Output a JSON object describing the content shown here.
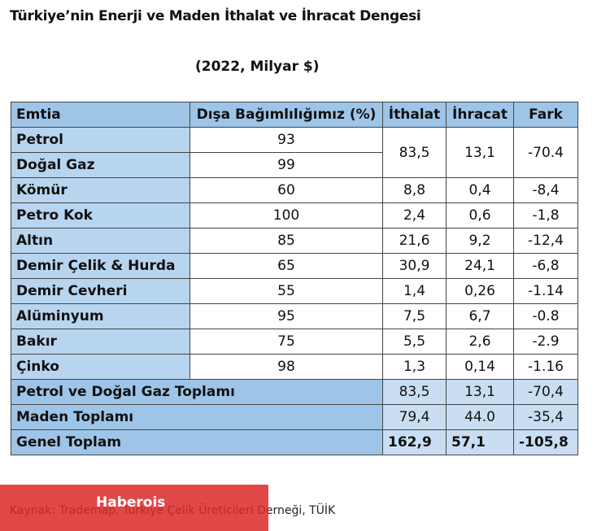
{
  "title": "Türkiye’nin Enerji ve Maden İthalat ve İhracat Dengesi",
  "subtitle": "(2022, Milyar $)",
  "table": {
    "header": [
      "Emtia",
      "Dışa Bağımlılığımız (%)",
      "İthalat",
      "İhracat",
      "Fark"
    ],
    "rows": [
      [
        "Petrol",
        "93",
        "83,5",
        "13,1",
        "-70.4"
      ],
      [
        "Doğal Gaz",
        "99"
      ],
      [
        "Kömür",
        "60",
        "8,8",
        "0,4",
        "-8,4"
      ],
      [
        "Petro Kok",
        "100",
        "2,4",
        "0,6",
        "-1,8"
      ],
      [
        "Altın",
        "85",
        "21,6",
        "9,2",
        "-12,4"
      ],
      [
        "Demir Çelik & Hurda",
        "65",
        "30,9",
        "24,1",
        "-6,8"
      ],
      [
        "Demir Cevheri",
        "55",
        "1,4",
        "0,26",
        "-1.14"
      ],
      [
        "Alüminyum",
        "95",
        "7,5",
        "6,7",
        "-0.8"
      ],
      [
        "Bakır",
        "75",
        "5,5",
        "2,6",
        "-2.9"
      ],
      [
        "Çinko",
        "98",
        "1,3",
        "0,14",
        "-1.16"
      ]
    ],
    "totals": [
      [
        "Petrol ve Doğal Gaz Toplamı",
        "83,5",
        "13,1",
        "-70,4"
      ],
      [
        "Maden Toplamı",
        "79,4",
        "44.0",
        "-35,4"
      ],
      [
        "Genel Toplam",
        "162,9",
        "57,1",
        "-105,8"
      ]
    ]
  },
  "source": "Kaynak: Trademap, Türkiye Çelik Üreticileri Derneği, TÜİK",
  "watermark": "Haberois"
}
